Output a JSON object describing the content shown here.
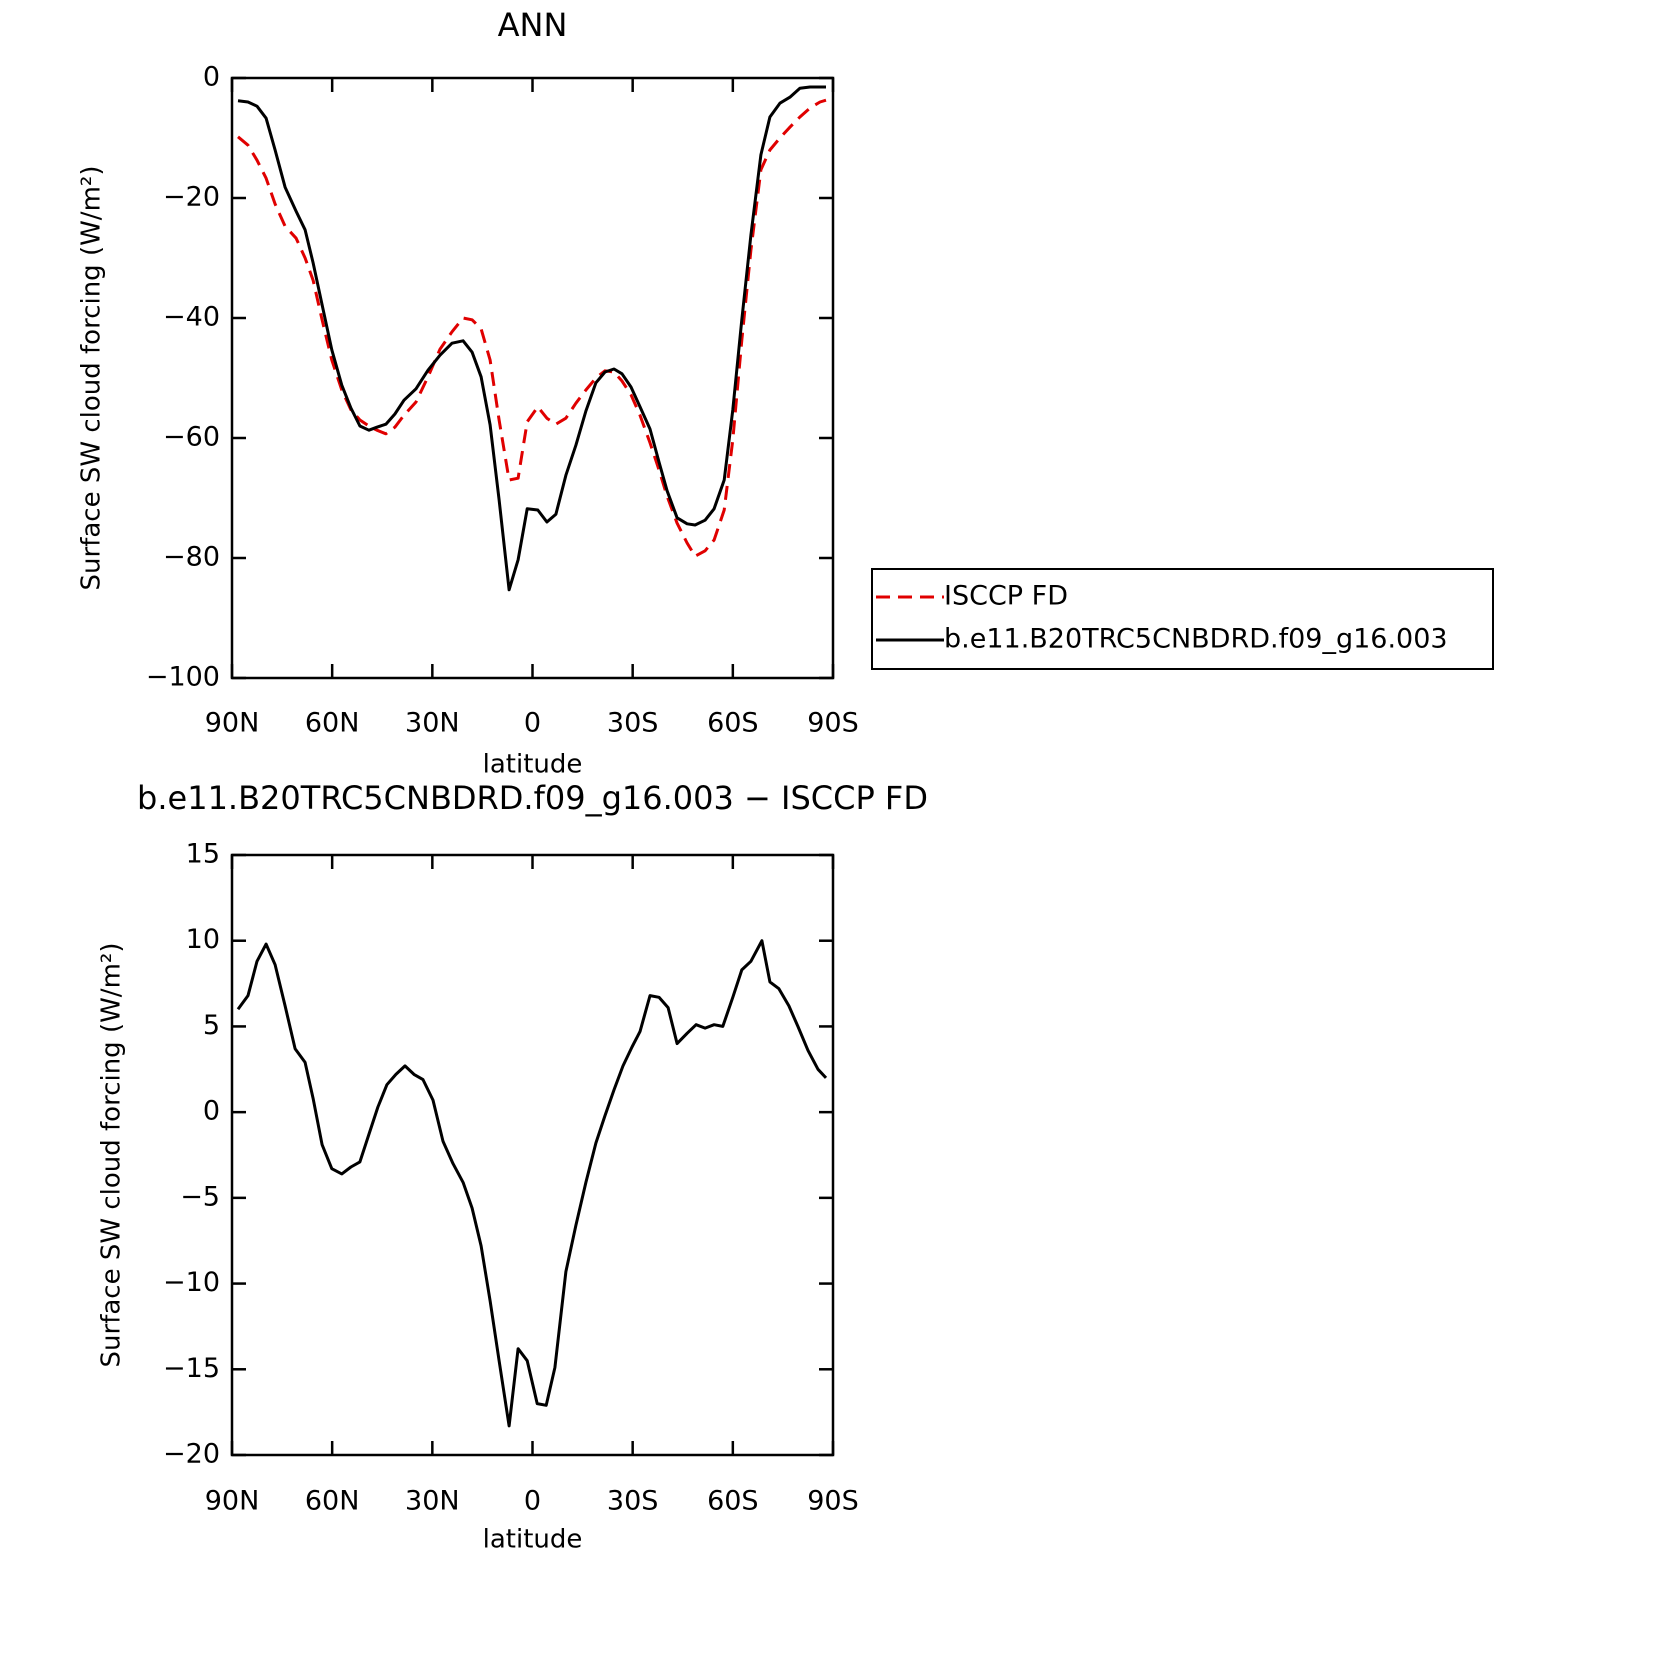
{
  "chart_data": [
    {
      "type": "line",
      "title": "ANN",
      "xlabel": "latitude",
      "ylabel": "Surface SW cloud forcing (W/m²)",
      "xlim": [
        90,
        -90
      ],
      "xticks": [
        {
          "value": 90,
          "label": "90N"
        },
        {
          "value": 60,
          "label": "60N"
        },
        {
          "value": 30,
          "label": "30N"
        },
        0,
        {
          "value": -30,
          "label": "30S"
        },
        {
          "value": -60,
          "label": "60S"
        },
        {
          "value": -90,
          "label": "90S"
        }
      ],
      "ylim": [
        -100,
        0
      ],
      "yticks": [
        0,
        {
          "value": -20,
          "label": "−20"
        },
        {
          "value": -40,
          "label": "−40"
        },
        {
          "value": -60,
          "label": "−60"
        },
        {
          "value": -80,
          "label": "−80"
        },
        {
          "value": -100,
          "label": "−100"
        }
      ],
      "legend": "right",
      "x": [
        88.2,
        85.2,
        82.5,
        79.8,
        77.1,
        74.1,
        70.8,
        68.1,
        65.7,
        63.0,
        60.1,
        57.1,
        54.4,
        51.7,
        49.0,
        46.6,
        43.9,
        41.2,
        38.5,
        34.9,
        31.3,
        27.7,
        24.1,
        20.8,
        18.1,
        15.4,
        12.7,
        10.0,
        7.0,
        4.3,
        1.6,
        -1.6,
        -4.3,
        -7.0,
        -10.0,
        -13.0,
        -16.0,
        -19.0,
        -21.7,
        -24.4,
        -26.8,
        -29.5,
        -32.2,
        -35.2,
        -37.9,
        -40.3,
        -43.3,
        -46.3,
        -48.7,
        -51.7,
        -54.4,
        -57.4,
        -60.0,
        -62.7,
        -65.4,
        -68.4,
        -71.1,
        -74.1,
        -77.1,
        -80.1,
        -83.1,
        -86.1,
        -87.9
      ],
      "series": [
        {
          "name": "ISCCP FD",
          "color": "#e00000",
          "style": "dashed",
          "values": [
            -9.8,
            -11.2,
            -13.7,
            -16.7,
            -21.0,
            -24.7,
            -26.7,
            -30.0,
            -33.7,
            -40.3,
            -47.0,
            -52.0,
            -55.3,
            -57.0,
            -58.0,
            -58.7,
            -59.3,
            -58.2,
            -56.2,
            -54.0,
            -49.8,
            -45.2,
            -42.3,
            -40.0,
            -40.3,
            -41.8,
            -47.0,
            -57.0,
            -67.0,
            -66.7,
            -57.3,
            -54.8,
            -56.7,
            -57.7,
            -56.7,
            -54.2,
            -52.0,
            -50.0,
            -48.8,
            -49.0,
            -50.5,
            -52.8,
            -56.2,
            -60.8,
            -65.3,
            -69.7,
            -74.2,
            -77.5,
            -79.7,
            -78.8,
            -77.0,
            -72.0,
            -60.3,
            -43.7,
            -28.7,
            -15.3,
            -12.0,
            -10.0,
            -8.2,
            -6.5,
            -5.0,
            -4.0,
            -3.7
          ]
        },
        {
          "name": "b.e11.B20TRC5CNBDRD.f09_g16.003",
          "color": "#000000",
          "style": "solid",
          "values": [
            -3.8,
            -4.0,
            -4.7,
            -6.7,
            -12.0,
            -18.2,
            -22.2,
            -25.3,
            -30.8,
            -37.8,
            -45.3,
            -51.2,
            -55.0,
            -58.0,
            -58.7,
            -58.2,
            -57.7,
            -56.0,
            -53.7,
            -51.8,
            -48.7,
            -46.2,
            -44.2,
            -43.8,
            -45.7,
            -49.8,
            -57.8,
            -70.3,
            -85.3,
            -80.3,
            -71.8,
            -72.0,
            -74.0,
            -72.7,
            -66.2,
            -61.2,
            -55.5,
            -50.8,
            -49.0,
            -48.5,
            -49.3,
            -51.5,
            -54.8,
            -58.5,
            -64.0,
            -68.8,
            -73.3,
            -74.3,
            -74.5,
            -73.7,
            -71.8,
            -67.0,
            -55.3,
            -40.3,
            -26.2,
            -12.8,
            -6.5,
            -4.2,
            -3.2,
            -1.7,
            -1.5,
            -1.5,
            -1.5
          ]
        }
      ]
    },
    {
      "type": "line",
      "title": "b.e11.B20TRC5CNBDRD.f09_g16.003 − ISCCP FD",
      "xlabel": "latitude",
      "ylabel": "Surface SW cloud forcing (W/m²)",
      "xlim": [
        90,
        -90
      ],
      "xticks": [
        {
          "value": 90,
          "label": "90N"
        },
        {
          "value": 60,
          "label": "60N"
        },
        {
          "value": 30,
          "label": "30N"
        },
        0,
        {
          "value": -30,
          "label": "30S"
        },
        {
          "value": -60,
          "label": "60S"
        },
        {
          "value": -90,
          "label": "90S"
        }
      ],
      "ylim": [
        -20,
        15
      ],
      "yticks": [
        15,
        10,
        5,
        0,
        {
          "value": -5,
          "label": "−5"
        },
        {
          "value": -10,
          "label": "−10"
        },
        {
          "value": -15,
          "label": "−15"
        },
        {
          "value": -20,
          "label": "−20"
        }
      ],
      "x": [
        88.2,
        85.2,
        82.5,
        79.8,
        77.1,
        74.1,
        71.1,
        68.1,
        65.7,
        63.0,
        60.1,
        57.1,
        54.4,
        51.7,
        49.0,
        46.3,
        43.6,
        40.9,
        38.2,
        35.5,
        32.8,
        29.8,
        26.8,
        23.8,
        20.8,
        18.1,
        15.4,
        12.7,
        10.0,
        7.0,
        4.3,
        1.6,
        -1.4,
        -4.1,
        -6.7,
        -10.0,
        -13.0,
        -16.0,
        -19.0,
        -21.7,
        -24.4,
        -27.1,
        -29.8,
        -32.2,
        -35.2,
        -37.9,
        -40.6,
        -43.3,
        -46.3,
        -49.0,
        -51.7,
        -54.4,
        -57.0,
        -60.0,
        -62.7,
        -65.4,
        -68.7,
        -71.1,
        -73.8,
        -76.8,
        -79.5,
        -82.5,
        -85.5,
        -87.9
      ],
      "series": [
        {
          "color": "#000000",
          "style": "solid",
          "values": [
            6.0,
            6.8,
            8.8,
            9.8,
            8.6,
            6.2,
            3.7,
            2.9,
            0.8,
            -1.9,
            -3.3,
            -3.6,
            -3.2,
            -2.9,
            -1.3,
            0.3,
            1.6,
            2.2,
            2.7,
            2.2,
            1.9,
            0.7,
            -1.7,
            -3.0,
            -4.1,
            -5.6,
            -7.8,
            -11.0,
            -14.5,
            -18.3,
            -13.8,
            -14.5,
            -17.0,
            -17.1,
            -14.9,
            -9.3,
            -6.6,
            -4.1,
            -1.8,
            -0.2,
            1.3,
            2.7,
            3.8,
            4.7,
            6.8,
            6.7,
            6.1,
            4.0,
            4.6,
            5.1,
            4.9,
            5.1,
            5.0,
            6.7,
            8.3,
            8.8,
            10.0,
            7.6,
            7.2,
            6.2,
            5.0,
            3.6,
            2.5,
            2.0
          ]
        }
      ]
    }
  ]
}
